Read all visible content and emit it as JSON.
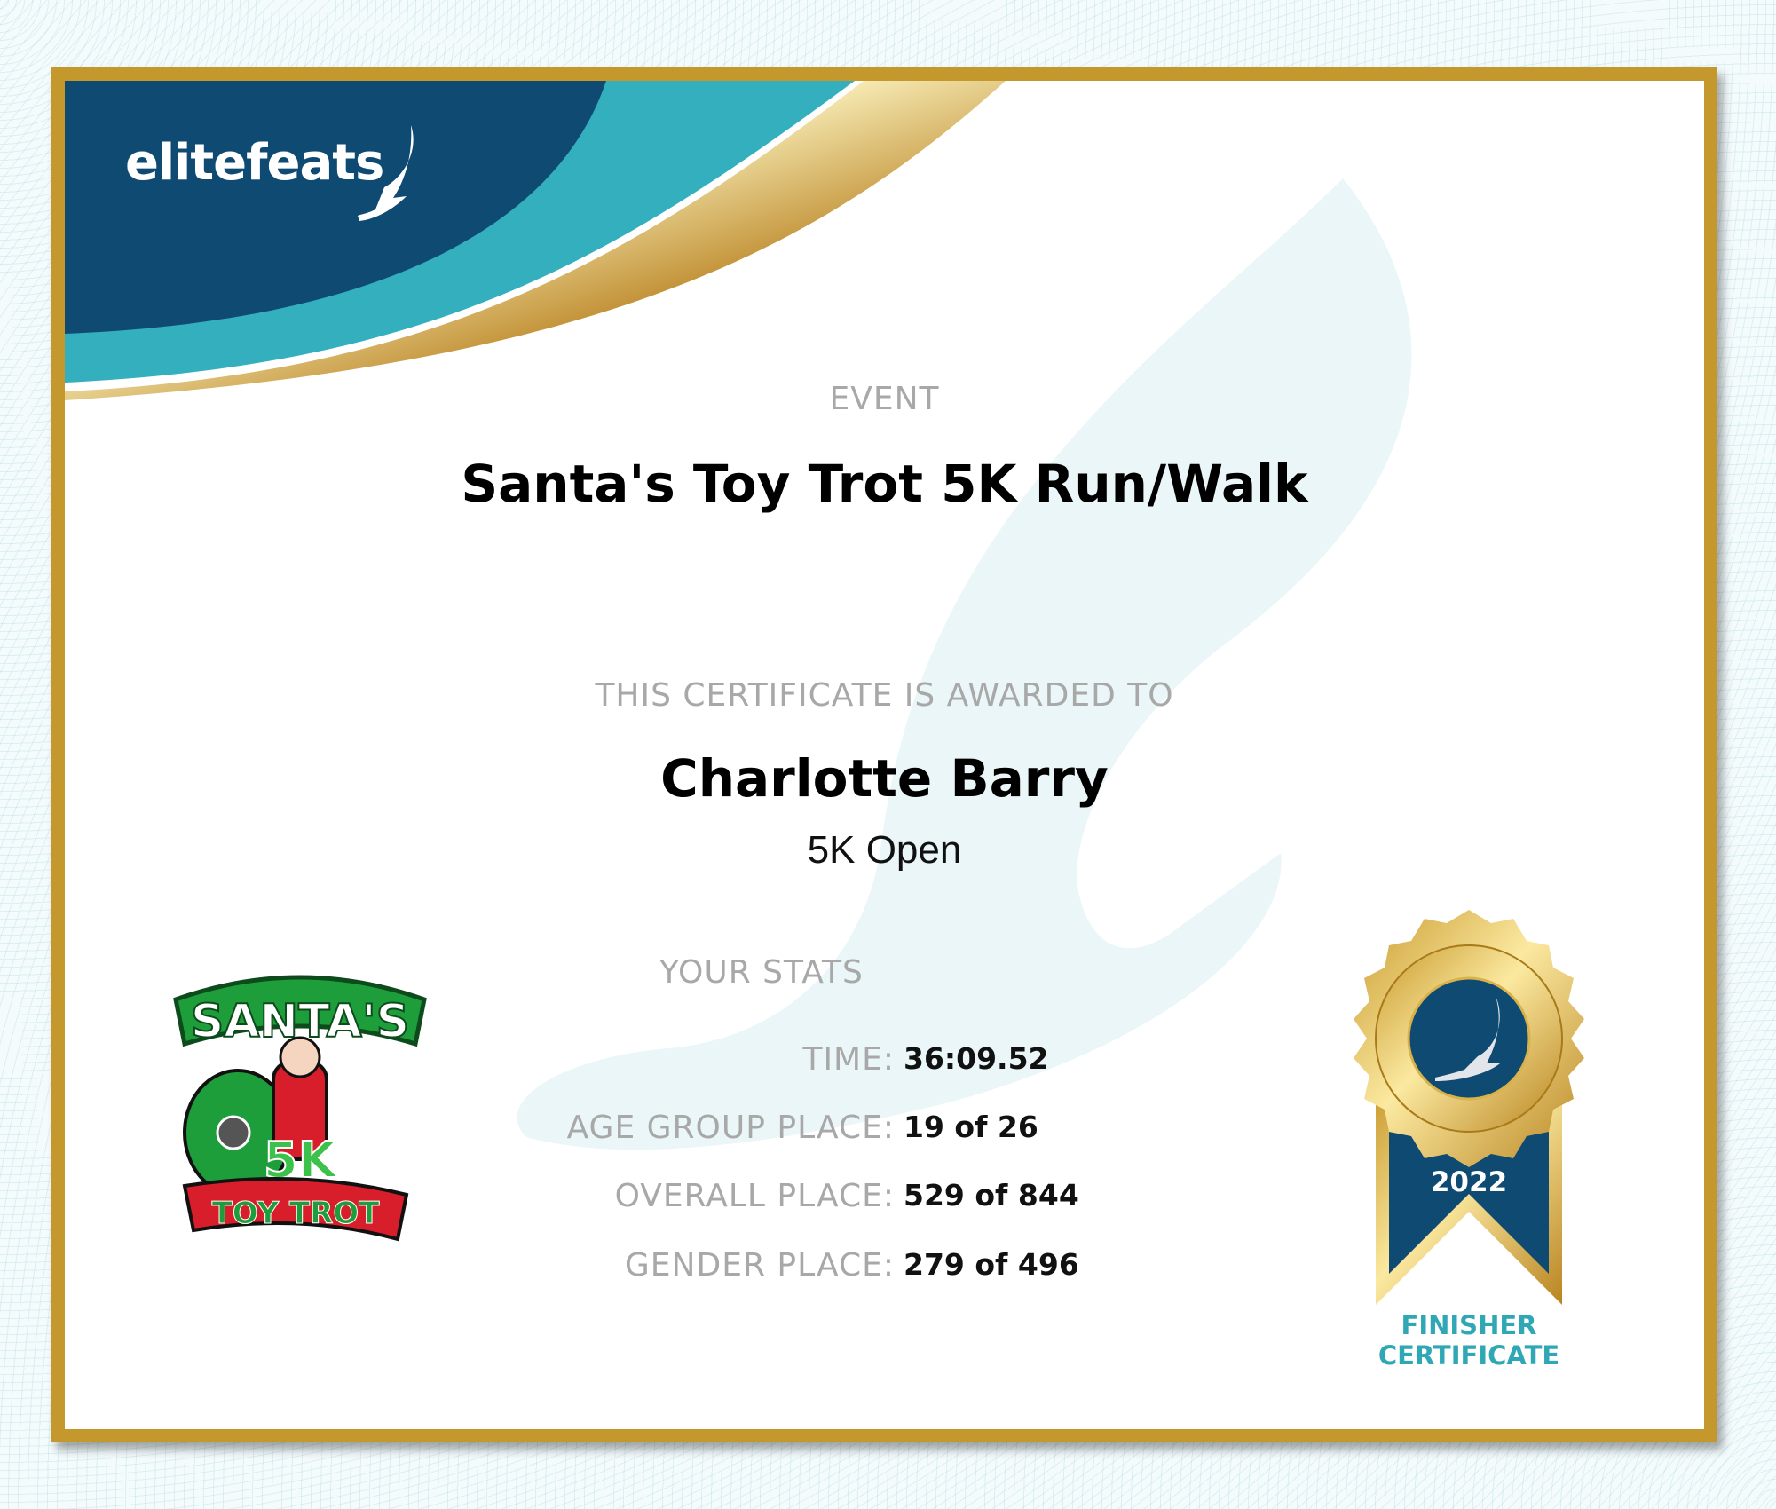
{
  "brand": {
    "logo_text": "elitefeats"
  },
  "event": {
    "label": "EVENT",
    "name": "Santa's Toy Trot 5K Run/Walk"
  },
  "award": {
    "label": "THIS CERTIFICATE IS AWARDED TO",
    "name": "Charlotte Barry",
    "division": "5K Open"
  },
  "stats": {
    "label": "YOUR STATS",
    "rows": [
      {
        "key": "TIME:",
        "value": "36:09.52"
      },
      {
        "key": "AGE GROUP PLACE:",
        "value": "19 of 26"
      },
      {
        "key": "OVERALL PLACE:",
        "value": "529 of 844"
      },
      {
        "key": "GENDER PLACE:",
        "value": "279 of 496"
      }
    ]
  },
  "event_logo": {
    "text": "SANTA'S 5K TOY TROT"
  },
  "medal": {
    "year": "2022",
    "line1": "FINISHER",
    "line2": "CERTIFICATE"
  },
  "colors": {
    "navy": "#0f4a72",
    "teal": "#33afbe",
    "gold": "#c5982e",
    "label_gray": "#a8a8a8",
    "finisher_teal": "#2fa7b4"
  }
}
